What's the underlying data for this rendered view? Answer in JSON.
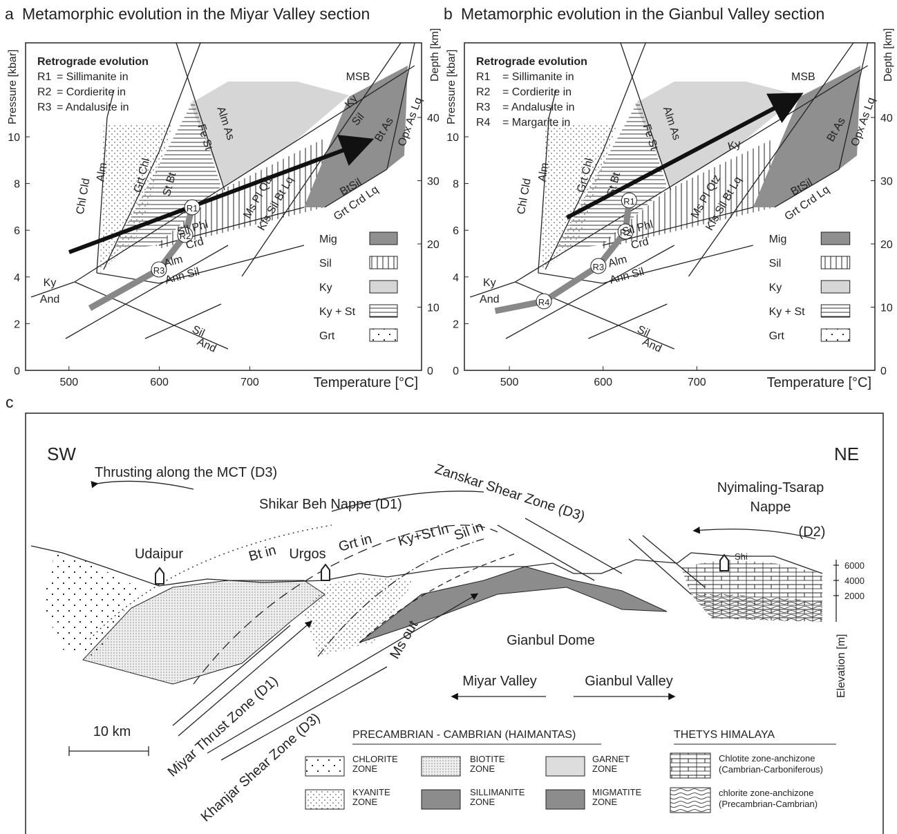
{
  "panel_a": {
    "letter": "a",
    "title": "Metamorphic evolution in the Miyar Valley section",
    "y_label": "Pressure [kbar]",
    "y2_label": "Depth [km]",
    "x_label": "Temperature [°C]",
    "x_ticks": [
      500,
      600,
      700
    ],
    "y_ticks": [
      0,
      2,
      4,
      6,
      8,
      10
    ],
    "y2_ticks": [
      0,
      10,
      20,
      30,
      40
    ],
    "retro_title": "Retrograde evolution",
    "retro": [
      [
        "R1",
        "= Sillimanite in"
      ],
      [
        "R2",
        "= Cordierite in"
      ],
      [
        "R3",
        "= Andalusite in"
      ]
    ],
    "fields": [
      "Ky",
      "And",
      "Chl Cld",
      "Alm",
      "Grt Chl",
      "St Bt",
      "Alm As",
      "Fe St",
      "MSB",
      "Ky",
      "Sil",
      "Bt As",
      "Opx As Lq",
      "Sil Phl",
      "Crd",
      "Alm",
      "Ann Sil",
      "Ms Pl Qtz",
      "Kfs Sil Bt Lq",
      "BtSil",
      "Grt Crd Lq",
      "Sil",
      "And"
    ],
    "legend": [
      "Mig",
      "Sil",
      "Ky",
      "Ky + St",
      "Grt"
    ],
    "markers": [
      "R1",
      "R2",
      "R3"
    ]
  },
  "panel_b": {
    "letter": "b",
    "title": "Metamorphic evolution in the Gianbul Valley section",
    "y_label": "Pressure [kbar]",
    "y2_label": "Depth [km]",
    "x_label": "Temperature [°C]",
    "x_ticks": [
      500,
      600,
      700
    ],
    "y_ticks": [
      0,
      2,
      4,
      6,
      8,
      10
    ],
    "y2_ticks": [
      0,
      10,
      20,
      30,
      40
    ],
    "retro_title": "Retrograde evolution",
    "retro": [
      [
        "R1",
        "= Sillimanite in"
      ],
      [
        "R2",
        "= Cordierite in"
      ],
      [
        "R3",
        "= Andalusite in"
      ],
      [
        "R4",
        "= Margarite in"
      ]
    ],
    "fields": [
      "Ky",
      "And",
      "Chl Cld",
      "Alm",
      "Grt Chl",
      "St Bt",
      "Alm As",
      "Fe St",
      "MSB",
      "Ky",
      "Bt As",
      "Opx As Lq",
      "Sil Phl",
      "Crd",
      "Alm",
      "Ann Sil",
      "Ms Pl Qtz",
      "Kfs Sil Bt Lq",
      "BtSil",
      "Grt Crd Lq",
      "Sil",
      "And"
    ],
    "legend": [
      "Mig",
      "Sil",
      "Ky",
      "Ky + St",
      "Grt"
    ],
    "markers": [
      "R1",
      "R2",
      "R3",
      "R4"
    ]
  },
  "panel_c": {
    "letter": "c",
    "sw": "SW",
    "ne": "NE",
    "mct": "Thrusting along the MCT (D3)",
    "shikar": "Shikar Beh Nappe (D1)",
    "zanskar": "Zanskar Shear Zone (D3)",
    "nyimaling": [
      "Nyimaling-Tsarap",
      "Nappe",
      "(D2)"
    ],
    "towns": [
      "Udaipur",
      "Urgos",
      "Shi"
    ],
    "isograds": [
      "Bt in",
      "Grt in",
      "Ky+St in",
      "Sil in",
      "Ms out"
    ],
    "dome": "Gianbul Dome",
    "valleys": [
      "Miyar Valley",
      "Gianbul Valley"
    ],
    "scale": "10 km",
    "miyar_thrust": "Miyar Thrust Zone (D1)",
    "khanjar": "Khanjar Shear Zone (D3)",
    "elevation_ticks": [
      6000,
      4000,
      2000
    ],
    "elevation_label": "Elevation [m]",
    "legend_header_1": "PRECAMBRIAN - CAMBRIAN  (HAIMANTAS)",
    "legend_header_2": "THETYS HIMALAYA",
    "legend": [
      [
        "CHLORITE",
        "ZONE"
      ],
      [
        "BIOTITE",
        "ZONE"
      ],
      [
        "GARNET",
        "ZONE"
      ],
      [
        "KYANITE",
        "ZONE"
      ],
      [
        "SILLIMANITE",
        "ZONE"
      ],
      [
        "MIGMATITE",
        "ZONE"
      ]
    ],
    "legend_2": [
      [
        "Chlotite zone-anchizone",
        "(Cambrian-Carboniferous)"
      ],
      [
        "chlorite zone-anchizone",
        "(Precambrian-Cambrian)"
      ]
    ]
  }
}
